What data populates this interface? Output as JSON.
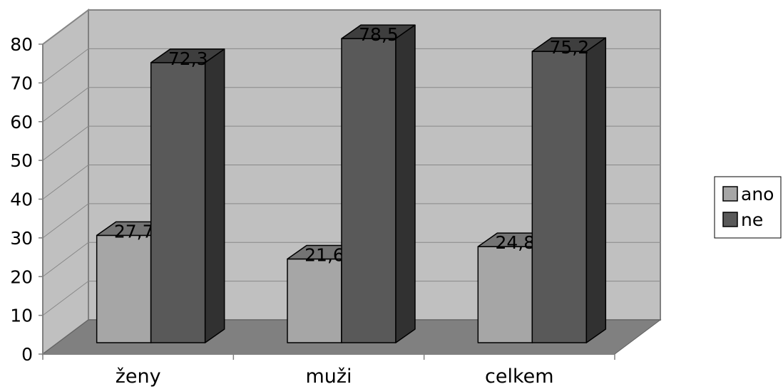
{
  "chart_data": {
    "type": "bar",
    "title": "",
    "xlabel": "",
    "ylabel": "",
    "categories": [
      "ženy",
      "muži",
      "celkem"
    ],
    "series": [
      {
        "name": "ano",
        "values": [
          27.7,
          21.6,
          24.8
        ],
        "value_labels": [
          "27,7",
          "21,6",
          "24,8"
        ],
        "color": "#a6a6a6"
      },
      {
        "name": "ne",
        "values": [
          72.3,
          78.5,
          75.2
        ],
        "value_labels": [
          "72,3",
          "78,5",
          "75,2"
        ],
        "color": "#595959"
      }
    ],
    "ylim": [
      0,
      80
    ],
    "yticks": [
      0,
      10,
      20,
      30,
      40,
      50,
      60,
      70,
      80
    ],
    "grid": true,
    "legend": "right",
    "three_d": true,
    "colors": {
      "back_wall": "#c0c0c0",
      "side_wall": "#c0c0c0",
      "floor": "#808080",
      "gridline": "#888888"
    }
  }
}
